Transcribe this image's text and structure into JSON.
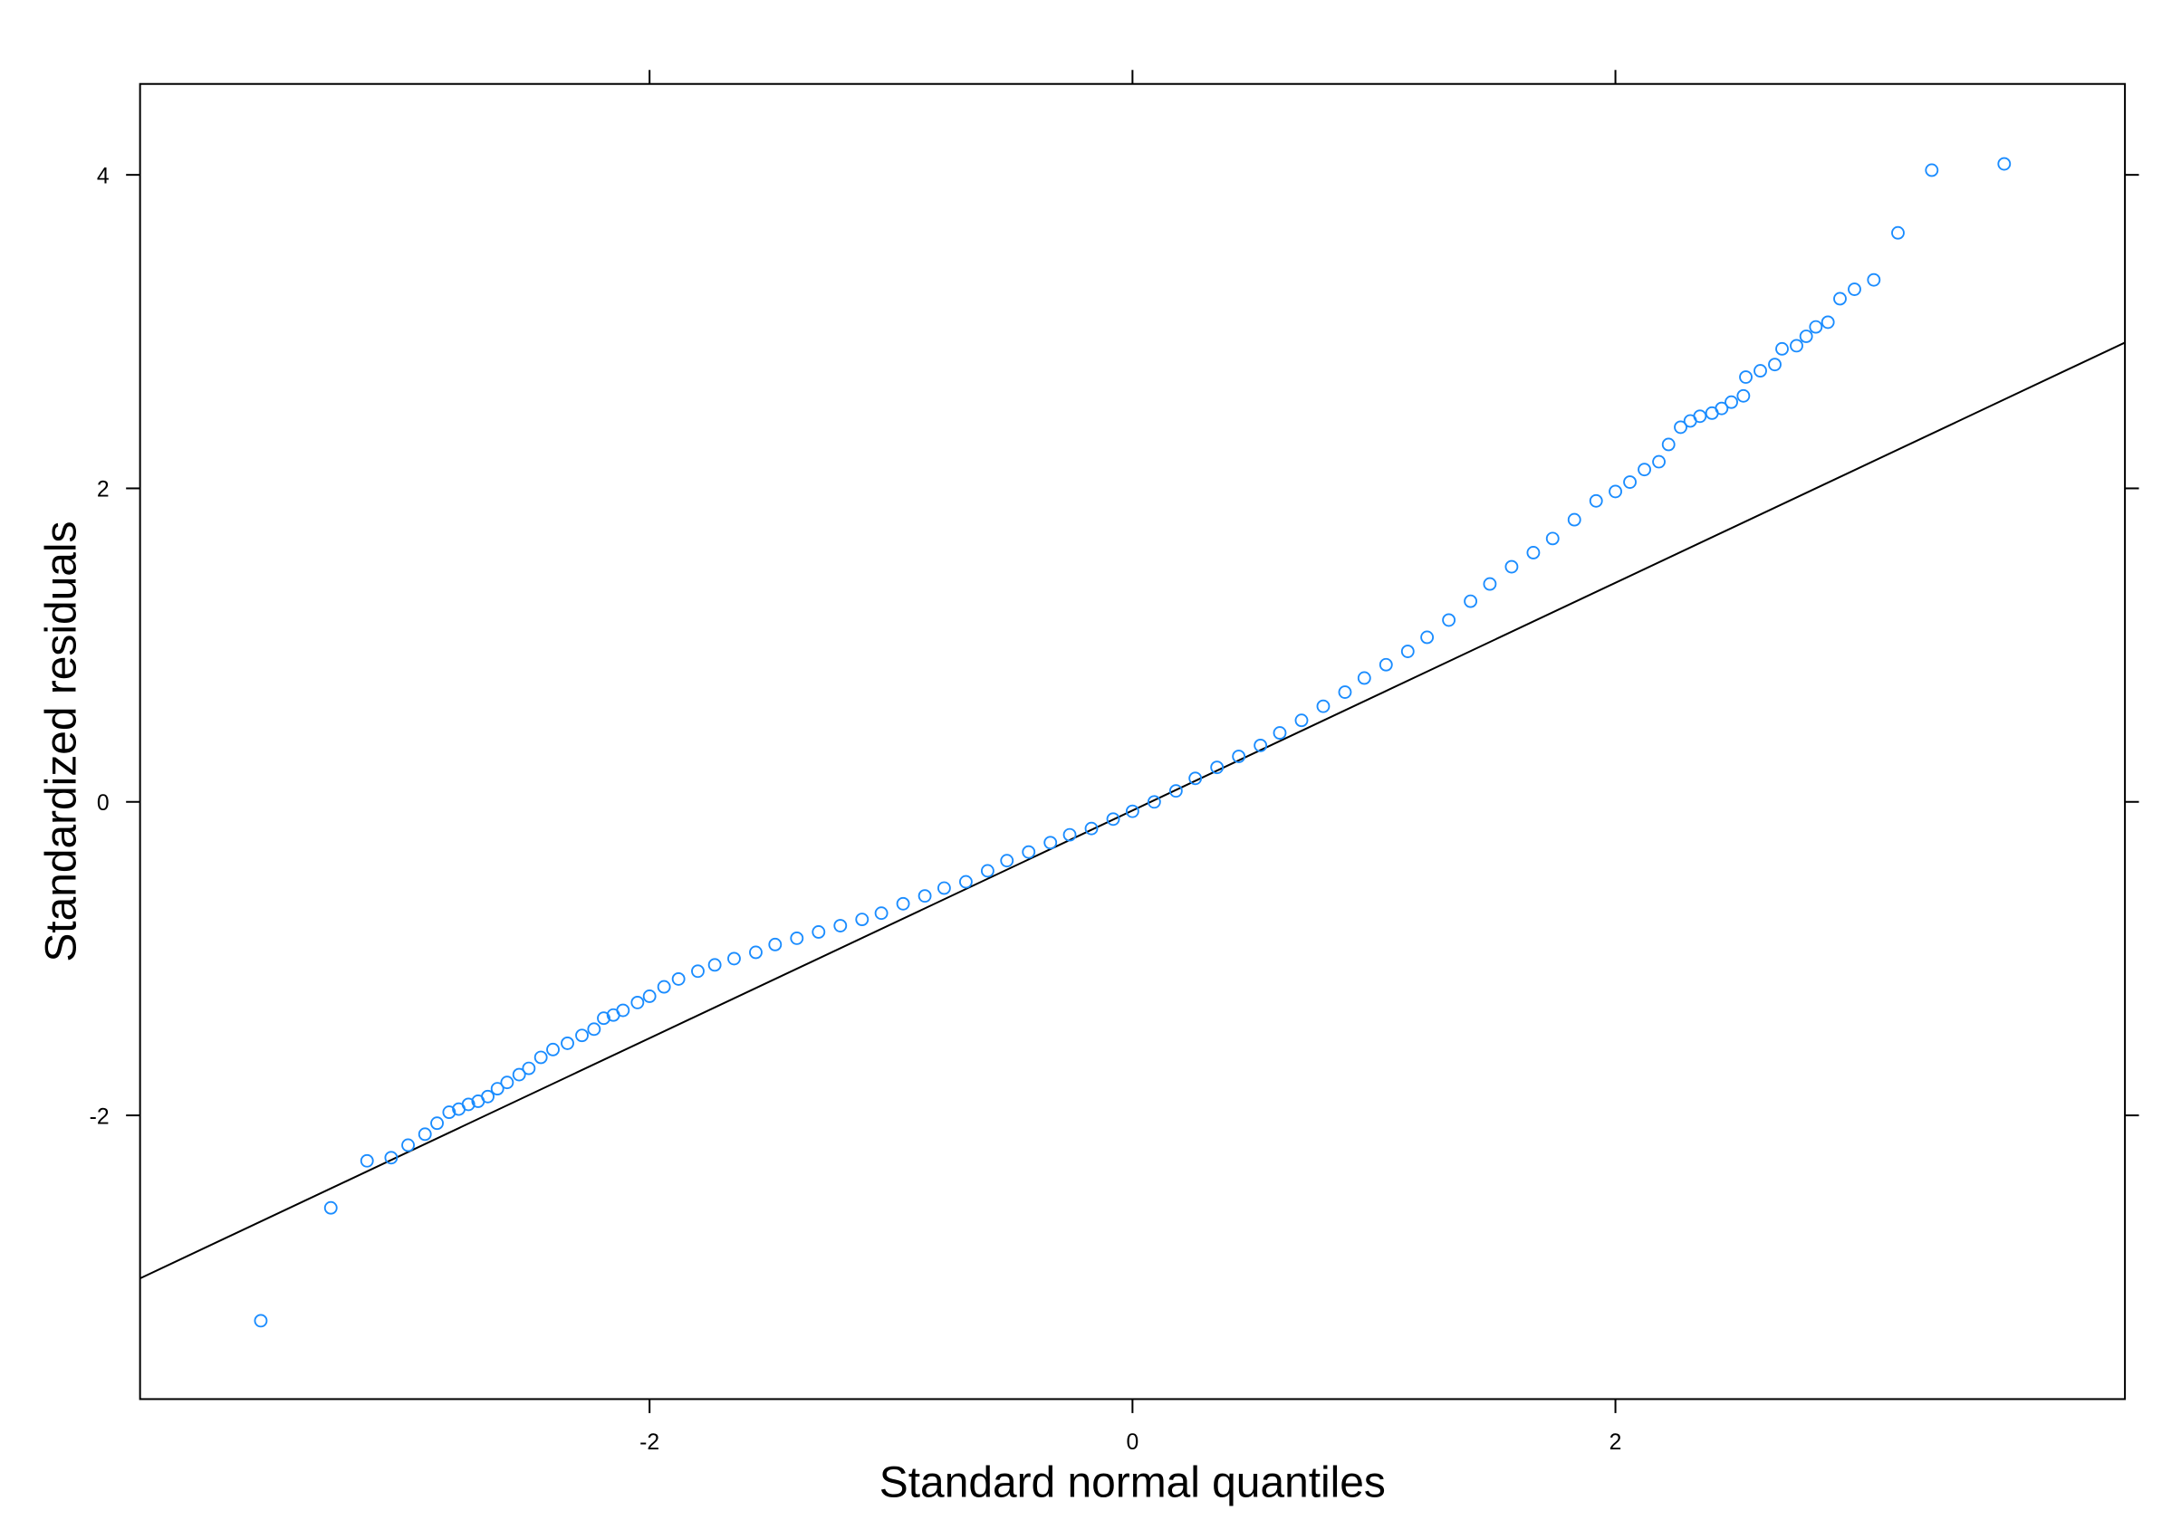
{
  "chart_data": {
    "type": "scatter",
    "x_label": "Standard normal quantiles",
    "y_label": "Standardized residuals",
    "color": "#1a8cff",
    "xlim": [
      -4.11,
      4.11
    ],
    "ylim": [
      -3.81,
      4.58
    ],
    "xticks": [
      -2,
      0,
      2
    ],
    "yticks": [
      -2,
      0,
      2,
      4
    ],
    "x": [
      -3.61,
      -3.32,
      -3.17,
      -3.07,
      -3.0,
      -2.93,
      -2.88,
      -2.83,
      -2.79,
      -2.75,
      -2.71,
      -2.67,
      -2.63,
      -2.59,
      -2.54,
      -2.5,
      -2.45,
      -2.4,
      -2.34,
      -2.28,
      -2.23,
      -2.19,
      -2.15,
      -2.11,
      -2.05,
      -2.0,
      -1.94,
      -1.88,
      -1.8,
      -1.73,
      -1.65,
      -1.56,
      -1.48,
      -1.39,
      -1.3,
      -1.21,
      -1.12,
      -1.04,
      -0.95,
      -0.86,
      -0.78,
      -0.69,
      -0.6,
      -0.52,
      -0.43,
      -0.34,
      -0.26,
      -0.17,
      -0.08,
      0.0,
      0.09,
      0.18,
      0.26,
      0.35,
      0.44,
      0.53,
      0.61,
      0.7,
      0.79,
      0.88,
      0.96,
      1.05,
      1.14,
      1.22,
      1.31,
      1.4,
      1.48,
      1.57,
      1.66,
      1.74,
      1.83,
      1.92,
      2.0,
      2.06,
      2.12,
      2.18,
      2.22,
      2.27,
      2.31,
      2.35,
      2.4,
      2.44,
      2.48,
      2.53,
      2.54,
      2.6,
      2.66,
      2.69,
      2.75,
      2.79,
      2.83,
      2.88,
      2.93,
      2.99,
      3.07,
      3.17,
      3.31,
      3.61
    ],
    "y": [
      -3.31,
      -2.59,
      -2.29,
      -2.27,
      -2.19,
      -2.12,
      -2.05,
      -1.98,
      -1.96,
      -1.93,
      -1.91,
      -1.88,
      -1.83,
      -1.79,
      -1.74,
      -1.7,
      -1.63,
      -1.58,
      -1.54,
      -1.49,
      -1.45,
      -1.38,
      -1.36,
      -1.33,
      -1.28,
      -1.24,
      -1.18,
      -1.13,
      -1.08,
      -1.04,
      -1.0,
      -0.96,
      -0.91,
      -0.87,
      -0.83,
      -0.79,
      -0.75,
      -0.71,
      -0.65,
      -0.6,
      -0.55,
      -0.51,
      -0.44,
      -0.375,
      -0.32,
      -0.26,
      -0.21,
      -0.17,
      -0.11,
      -0.06,
      0.0,
      0.07,
      0.15,
      0.22,
      0.29,
      0.36,
      0.44,
      0.52,
      0.61,
      0.7,
      0.79,
      0.875,
      0.96,
      1.05,
      1.16,
      1.28,
      1.39,
      1.5,
      1.59,
      1.68,
      1.8,
      1.92,
      1.98,
      2.04,
      2.12,
      2.17,
      2.28,
      2.39,
      2.43,
      2.46,
      2.48,
      2.51,
      2.55,
      2.59,
      2.71,
      2.75,
      2.79,
      2.89,
      2.91,
      2.97,
      3.03,
      3.06,
      3.21,
      3.27,
      3.33,
      3.63,
      4.03,
      4.07
    ],
    "reference_line": {
      "x": [
        -4.11,
        4.11
      ],
      "y": [
        -3.04,
        2.93
      ]
    }
  }
}
